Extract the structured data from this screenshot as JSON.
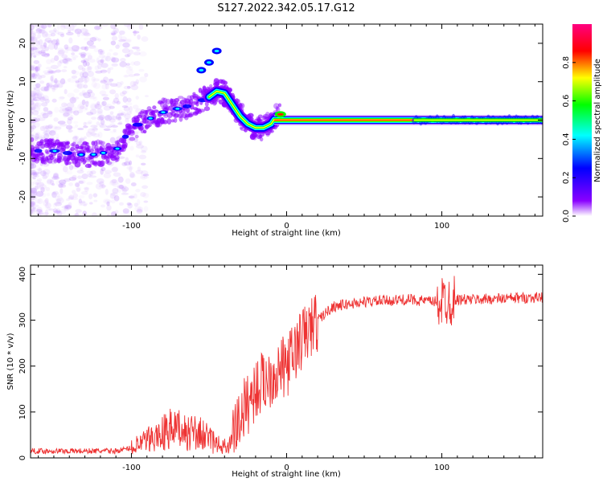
{
  "figure": {
    "title": "S127.2022.342.05.17.G12"
  },
  "chart_data": [
    {
      "type": "heatmap",
      "name": "spectrogram",
      "xlabel": "Height of straight line (km)",
      "ylabel": "Frequency (Hz)",
      "xlim": [
        -165,
        165
      ],
      "ylim": [
        -25,
        25
      ],
      "xticks": [
        -100,
        0,
        100
      ],
      "yticks": [
        -20,
        -10,
        0,
        10,
        20
      ],
      "colorbar": {
        "label": "Normalized spectral amplitude",
        "range": [
          0,
          1
        ],
        "ticks": [
          0.0,
          0.2,
          0.4,
          0.6,
          0.8
        ],
        "colors": [
          "#ffffff",
          "#8a00ff",
          "#0000ff",
          "#00ffff",
          "#00ff00",
          "#ffff00",
          "#ff0000",
          "#ff0080"
        ]
      },
      "ridge": {
        "x": [
          -165,
          -150,
          -135,
          -125,
          -110,
          -100,
          -90,
          -80,
          -70,
          -60,
          -50,
          -45,
          -40,
          -35,
          -30,
          -25,
          -20,
          -15,
          -10,
          -5,
          0,
          10,
          30,
          50,
          70,
          90,
          110,
          130,
          150,
          165
        ],
        "y": [
          -8,
          -8,
          -9,
          -9,
          -8,
          -2,
          0,
          2,
          3,
          4,
          6,
          7.5,
          7,
          4,
          1,
          -1,
          -2,
          -2,
          -1,
          2,
          1,
          0,
          0,
          0,
          0,
          0,
          0,
          0,
          0,
          0
        ]
      },
      "upper_branch": {
        "x": [
          -55,
          -50,
          -45
        ],
        "y": [
          13,
          15,
          18
        ]
      }
    },
    {
      "type": "line",
      "name": "snr",
      "xlabel": "Height of straight line (km)",
      "ylabel": "SNR (10 * v/v)",
      "xlim": [
        -165,
        165
      ],
      "ylim": [
        0,
        420
      ],
      "xticks": [
        -100,
        0,
        100
      ],
      "yticks": [
        0,
        100,
        200,
        300,
        400
      ],
      "color": "#ee3333",
      "trend": {
        "x": [
          -165,
          -110,
          -95,
          -85,
          -75,
          -65,
          -55,
          -45,
          -38,
          -30,
          -20,
          -10,
          0,
          10,
          20,
          30,
          50,
          80,
          95,
          105,
          120,
          165
        ],
        "y": [
          15,
          15,
          25,
          40,
          55,
          50,
          45,
          25,
          20,
          90,
          150,
          180,
          200,
          260,
          300,
          330,
          340,
          345,
          340,
          345,
          345,
          350
        ]
      }
    }
  ]
}
